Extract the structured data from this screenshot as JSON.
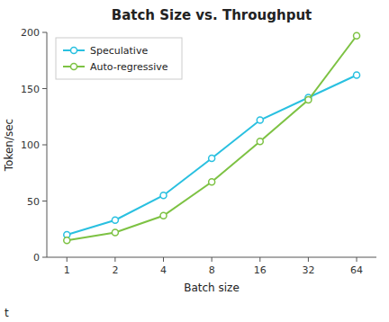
{
  "chart_data": {
    "type": "line",
    "title": "Batch Size vs. Throughput",
    "x_label": "Batch size",
    "y_label": "Token/sec",
    "x": [
      1,
      2,
      4,
      8,
      16,
      32,
      64
    ],
    "series": [
      {
        "name": "Speculative",
        "color": "#29C0E0",
        "marker": "circle",
        "values": [
          20,
          33,
          55,
          88,
          122,
          142,
          162
        ]
      },
      {
        "name": "Auto-regressive",
        "color": "#7DC243",
        "marker": "circle",
        "values": [
          15,
          22,
          37,
          67,
          103,
          140,
          197
        ]
      }
    ],
    "log": "x",
    "xlim": [
      0.75,
      85
    ],
    "xticks": [
      1,
      2,
      4,
      8,
      16,
      32,
      64
    ],
    "ylim": [
      0,
      200
    ],
    "yticks": [
      0,
      50,
      100,
      150,
      200
    ],
    "grid": false,
    "legend": "upper left",
    "annotations": [
      "t"
    ]
  }
}
